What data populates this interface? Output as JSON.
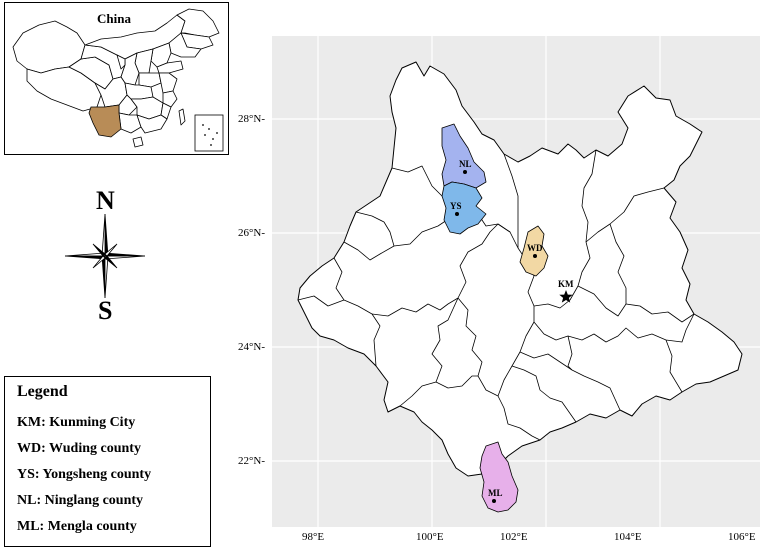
{
  "inset": {
    "title": "China"
  },
  "compass": {
    "north": "N",
    "south": "S"
  },
  "legend": {
    "title": "Legend",
    "items": [
      "KM: Kunming City",
      "WD: Wuding county",
      "YS: Yongsheng county",
      "NL: Ninglang county",
      "ML: Mengla county"
    ]
  },
  "map": {
    "lat_labels": [
      "28°N-",
      "26°N-",
      "24°N-",
      "22°N-"
    ],
    "lon_labels": [
      "98°E",
      "100°E",
      "102°E",
      "104°E",
      "106°E"
    ],
    "places": {
      "nl": "NL",
      "ys": "YS",
      "wd": "WD",
      "km": "KM",
      "ml": "ML"
    }
  },
  "colors": {
    "nl_fill": "#a4b3ef",
    "ys_fill": "#7fb8ea",
    "wd_fill": "#f2d8a4",
    "ml_fill": "#e7b0ea",
    "yunnan_inset_fill": "#b88c57",
    "panel_bg": "#ebebeb",
    "grid": "#ffffff"
  }
}
